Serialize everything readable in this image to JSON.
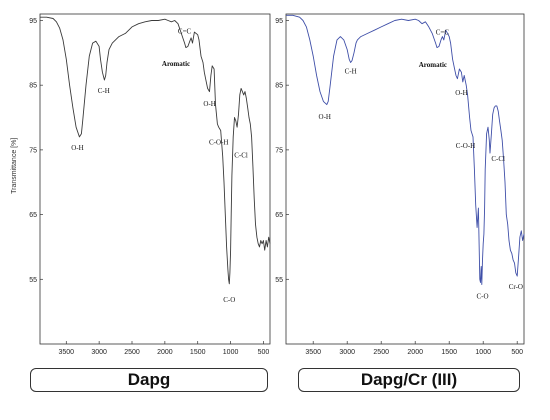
{
  "captions": [
    "Dapg",
    "Dapg/Cr (III)"
  ],
  "chart_data": [
    {
      "type": "line",
      "title": "",
      "xlabel": "",
      "ylabel": "Transmittance [%]",
      "xlim": [
        3900,
        400
      ],
      "ylim": [
        45,
        96
      ],
      "x_ticks": [
        3500,
        3000,
        2500,
        2000,
        1500,
        1000,
        500
      ],
      "y_ticks": [
        55,
        65,
        75,
        85,
        95
      ],
      "grid": false,
      "line_color": "#3a3a3a",
      "series": [
        {
          "x": [
            3900,
            3800,
            3700,
            3650,
            3600,
            3550,
            3500,
            3450,
            3400,
            3350,
            3300,
            3270,
            3250,
            3200,
            3150,
            3100,
            3050,
            3000,
            2980,
            2950,
            2920,
            2900,
            2880,
            2850,
            2800,
            2700,
            2600,
            2500,
            2400,
            2300,
            2200,
            2100,
            2000,
            1950,
            1900,
            1850,
            1800,
            1750,
            1700,
            1680,
            1650,
            1620,
            1600,
            1580,
            1550,
            1500,
            1480,
            1450,
            1420,
            1400,
            1380,
            1350,
            1320,
            1300,
            1280,
            1250,
            1230,
            1200,
            1180,
            1150,
            1120,
            1100,
            1080,
            1060,
            1040,
            1030,
            1020,
            1010,
            1000,
            990,
            980,
            960,
            940,
            920,
            900,
            880,
            860,
            840,
            820,
            800,
            780,
            760,
            740,
            720,
            700,
            680,
            660,
            640,
            620,
            600,
            580,
            560,
            540,
            520,
            500,
            480,
            460,
            440,
            420,
            400
          ],
          "y": [
            95.5,
            95.5,
            95.3,
            94.8,
            93.8,
            92.0,
            89.0,
            85.0,
            81.5,
            78.5,
            77.0,
            77.5,
            79.5,
            85.0,
            89.5,
            91.5,
            91.8,
            91.0,
            89.0,
            87.0,
            85.8,
            86.5,
            88.5,
            90.5,
            91.5,
            92.5,
            93.0,
            94.0,
            94.5,
            94.8,
            95.0,
            95.0,
            95.2,
            95.0,
            94.8,
            95.0,
            94.5,
            93.0,
            91.5,
            90.8,
            91.0,
            91.8,
            92.3,
            91.5,
            93.2,
            92.8,
            92.0,
            89.5,
            88.5,
            87.0,
            86.0,
            84.5,
            84.0,
            86.5,
            88.0,
            87.5,
            82.0,
            79.0,
            78.5,
            78.0,
            74.0,
            70.0,
            65.0,
            60.0,
            56.5,
            55.0,
            54.3,
            56.0,
            59.5,
            65.0,
            71.0,
            77.0,
            80.0,
            79.5,
            78.5,
            80.5,
            83.5,
            84.5,
            84.0,
            83.5,
            84.0,
            83.0,
            81.5,
            80.0,
            79.0,
            77.0,
            72.5,
            67.5,
            63.5,
            61.5,
            60.5,
            60.0,
            61.0,
            60.5,
            61.0,
            59.5,
            61.0,
            60.0,
            61.5,
            60.5
          ]
        }
      ],
      "annotations": [
        {
          "text": "O-H",
          "x": 3330,
          "y": 75.0
        },
        {
          "text": "C-H",
          "x": 2930,
          "y": 83.8
        },
        {
          "text": "C=C",
          "x": 1700,
          "y": 93.0
        },
        {
          "text": "Aromatic",
          "x": 1830,
          "y": 88.0
        },
        {
          "text": "O-H",
          "x": 1320,
          "y": 81.8
        },
        {
          "text": "C-O-H",
          "x": 1180,
          "y": 75.8
        },
        {
          "text": "C-Cl",
          "x": 840,
          "y": 73.8
        },
        {
          "text": "C-O",
          "x": 1020,
          "y": 51.5
        }
      ]
    },
    {
      "type": "line",
      "title": "",
      "xlabel": "",
      "ylabel": "",
      "xlim": [
        3900,
        400
      ],
      "ylim": [
        45,
        96
      ],
      "x_ticks": [
        3500,
        3000,
        2500,
        2000,
        1500,
        1000,
        500
      ],
      "y_ticks": [
        55,
        65,
        75,
        85,
        95
      ],
      "grid": false,
      "line_color": "#3f4fa8",
      "series": [
        {
          "x": [
            3900,
            3800,
            3700,
            3650,
            3600,
            3550,
            3500,
            3450,
            3400,
            3350,
            3300,
            3280,
            3250,
            3200,
            3150,
            3100,
            3050,
            3000,
            2970,
            2950,
            2930,
            2900,
            2870,
            2850,
            2800,
            2700,
            2600,
            2500,
            2400,
            2300,
            2200,
            2100,
            2000,
            1950,
            1900,
            1850,
            1800,
            1750,
            1700,
            1680,
            1650,
            1620,
            1600,
            1580,
            1550,
            1500,
            1480,
            1450,
            1420,
            1400,
            1380,
            1350,
            1320,
            1300,
            1280,
            1250,
            1230,
            1200,
            1180,
            1150,
            1130,
            1110,
            1090,
            1070,
            1050,
            1040,
            1030,
            1020,
            1010,
            1000,
            990,
            980,
            970,
            950,
            930,
            910,
            900,
            880,
            860,
            840,
            820,
            800,
            780,
            760,
            740,
            720,
            700,
            680,
            660,
            640,
            620,
            600,
            580,
            560,
            540,
            520,
            500,
            480,
            460,
            440,
            420,
            400
          ],
          "y": [
            95.8,
            95.8,
            95.5,
            95.0,
            94.0,
            92.0,
            89.5,
            86.5,
            84.0,
            82.5,
            82.0,
            82.5,
            85.0,
            89.5,
            92.0,
            92.5,
            92.0,
            90.5,
            89.0,
            88.5,
            88.8,
            90.0,
            91.5,
            92.0,
            92.5,
            93.0,
            93.5,
            94.0,
            94.5,
            95.0,
            95.2,
            95.0,
            95.2,
            95.0,
            94.5,
            94.8,
            94.0,
            93.0,
            91.5,
            90.8,
            91.0,
            92.0,
            92.5,
            92.0,
            93.5,
            92.5,
            91.5,
            89.0,
            87.5,
            86.5,
            86.0,
            87.5,
            87.0,
            85.5,
            86.5,
            85.0,
            83.5,
            80.0,
            78.0,
            77.0,
            72.0,
            66.5,
            63.0,
            66.0,
            55.0,
            54.5,
            57.0,
            54.2,
            58.0,
            60.5,
            62.0,
            66.0,
            72.0,
            77.5,
            78.5,
            76.5,
            74.5,
            77.5,
            80.5,
            81.5,
            81.8,
            81.8,
            81.0,
            79.5,
            78.0,
            76.5,
            73.5,
            70.0,
            65.0,
            63.5,
            61.0,
            59.5,
            59.0,
            58.0,
            57.5,
            56.0,
            55.5,
            58.5,
            61.5,
            62.5,
            61.0,
            62.0
          ]
        }
      ],
      "annotations": [
        {
          "text": "O-H",
          "x": 3330,
          "y": 79.8
        },
        {
          "text": "C-H",
          "x": 2950,
          "y": 86.8
        },
        {
          "text": "C=C",
          "x": 1600,
          "y": 92.8
        },
        {
          "text": "Aromatic",
          "x": 1740,
          "y": 87.8
        },
        {
          "text": "O-H",
          "x": 1320,
          "y": 83.5
        },
        {
          "text": "C-O-H",
          "x": 1260,
          "y": 75.3
        },
        {
          "text": "C-Cl",
          "x": 780,
          "y": 73.3
        },
        {
          "text": "C-O",
          "x": 1010,
          "y": 52.0
        },
        {
          "text": "Cr-O",
          "x": 520,
          "y": 53.5
        }
      ]
    }
  ]
}
